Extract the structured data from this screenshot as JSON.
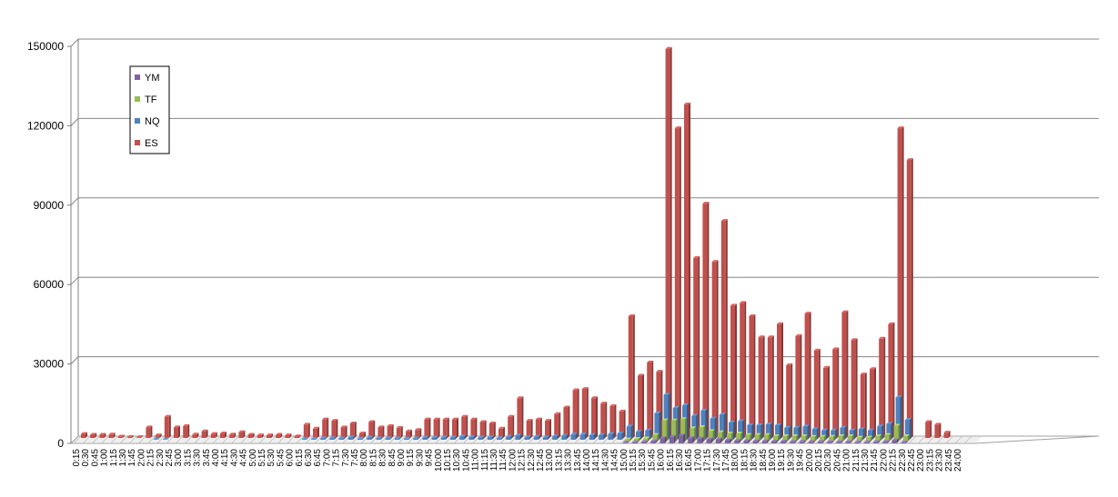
{
  "chart_data": {
    "type": "bar",
    "categories": [
      "0:15",
      "0:30",
      "0:45",
      "1:00",
      "1:15",
      "1:30",
      "1:45",
      "2:00",
      "2:15",
      "2:30",
      "2:45",
      "3:00",
      "3:15",
      "3:30",
      "3:45",
      "4:00",
      "4:15",
      "4:30",
      "4:45",
      "5:00",
      "5:15",
      "5:30",
      "5:45",
      "6:00",
      "6:15",
      "6:30",
      "6:45",
      "7:00",
      "7:15",
      "7:30",
      "7:45",
      "8:00",
      "8:15",
      "8:30",
      "8:45",
      "9:00",
      "9:15",
      "9:30",
      "9:45",
      "10:00",
      "10:15",
      "10:30",
      "10:45",
      "11:00",
      "11:15",
      "11:30",
      "11:45",
      "12:00",
      "12:15",
      "12:30",
      "12:45",
      "13:00",
      "13:15",
      "13:30",
      "13:45",
      "14:00",
      "14:15",
      "14:30",
      "14:45",
      "15:00",
      "15:15",
      "15:30",
      "15:45",
      "16:00",
      "16:15",
      "16:30",
      "16:45",
      "17:00",
      "17:15",
      "17:30",
      "17:45",
      "18:00",
      "18:15",
      "18:30",
      "18:45",
      "19:00",
      "19:15",
      "19:30",
      "19:45",
      "20:00",
      "20:15",
      "20:30",
      "20:45",
      "21:00",
      "21:15",
      "21:30",
      "21:45",
      "22:00",
      "22:15",
      "22:30",
      "22:45",
      "23:00",
      "23:15",
      "23:30",
      "23:45",
      "24:00"
    ],
    "series": [
      {
        "name": "YM",
        "color": "#7f64a2",
        "values": [
          0,
          0,
          0,
          0,
          0,
          0,
          0,
          0,
          0,
          0,
          0,
          0,
          0,
          0,
          0,
          0,
          0,
          0,
          0,
          0,
          0,
          0,
          0,
          0,
          0,
          0,
          0,
          0,
          0,
          0,
          0,
          0,
          0,
          0,
          0,
          0,
          0,
          0,
          0,
          0,
          0,
          0,
          0,
          0,
          0,
          0,
          0,
          0,
          0,
          0,
          0,
          0,
          0,
          0,
          0,
          0,
          0,
          0,
          0,
          300,
          400,
          500,
          800,
          2000,
          2500,
          3000,
          2000,
          1800,
          1500,
          1500,
          1200,
          1000,
          900,
          800,
          800,
          700,
          700,
          600,
          600,
          500,
          500,
          500,
          500,
          500,
          400,
          400,
          500,
          500,
          1200,
          400,
          0,
          0,
          0,
          0,
          0,
          0
        ]
      },
      {
        "name": "TF",
        "color": "#9bbb59",
        "values": [
          0,
          0,
          0,
          0,
          0,
          0,
          0,
          0,
          0,
          0,
          0,
          0,
          0,
          0,
          0,
          0,
          0,
          0,
          0,
          0,
          0,
          0,
          0,
          0,
          0,
          0,
          0,
          0,
          0,
          0,
          0,
          0,
          0,
          0,
          0,
          0,
          0,
          0,
          0,
          0,
          0,
          0,
          0,
          0,
          0,
          0,
          0,
          0,
          0,
          0,
          0,
          0,
          0,
          0,
          0,
          0,
          0,
          0,
          0,
          800,
          1000,
          1200,
          2500,
          8000,
          8000,
          8500,
          5000,
          5500,
          4000,
          3500,
          3000,
          3000,
          2500,
          2500,
          2500,
          2000,
          2000,
          2000,
          2000,
          1800,
          1800,
          1800,
          2000,
          2000,
          1500,
          1500,
          2000,
          2500,
          6000,
          2000,
          0,
          0,
          0,
          0,
          0,
          0
        ]
      },
      {
        "name": "NQ",
        "color": "#4f81bd",
        "values": [
          0,
          0,
          0,
          0,
          0,
          0,
          0,
          0,
          200,
          100,
          0,
          0,
          0,
          0,
          0,
          0,
          0,
          0,
          0,
          0,
          0,
          0,
          0,
          0,
          300,
          300,
          500,
          600,
          500,
          900,
          400,
          800,
          500,
          500,
          500,
          400,
          500,
          800,
          800,
          800,
          800,
          1200,
          1000,
          800,
          900,
          600,
          1100,
          1600,
          900,
          1100,
          900,
          1300,
          1500,
          2000,
          2000,
          1800,
          1800,
          2200,
          2400,
          5000,
          3000,
          3500,
          10000,
          17000,
          12000,
          13000,
          9000,
          11000,
          8000,
          9500,
          6500,
          7000,
          5500,
          5500,
          5800,
          5500,
          4500,
          4500,
          5000,
          4000,
          3500,
          3500,
          4500,
          3500,
          4000,
          3500,
          5000,
          6000,
          16000,
          7500,
          0,
          0,
          0,
          0,
          0,
          0
        ]
      },
      {
        "name": "ES",
        "color": "#c0504d",
        "values": [
          1500,
          1200,
          1200,
          1300,
          500,
          400,
          300,
          4000,
          1000,
          8000,
          4000,
          4500,
          1300,
          2500,
          1500,
          1700,
          1300,
          2200,
          1200,
          1000,
          1000,
          1200,
          1000,
          600,
          5000,
          3500,
          7000,
          6500,
          4000,
          5500,
          1700,
          6000,
          4000,
          4500,
          3800,
          2500,
          3000,
          7000,
          7000,
          7000,
          7000,
          8000,
          7000,
          6000,
          5500,
          3500,
          8000,
          15000,
          6500,
          7000,
          6500,
          9000,
          11500,
          18000,
          18500,
          15000,
          13000,
          12000,
          10000,
          46000,
          23500,
          28500,
          25000,
          147000,
          117000,
          126000,
          68000,
          88500,
          66500,
          82000,
          50000,
          51000,
          46000,
          38000,
          38000,
          43000,
          27500,
          38500,
          47000,
          33000,
          26500,
          33500,
          47500,
          37000,
          24000,
          26000,
          37500,
          43000,
          117000,
          105000,
          0,
          6000,
          5000,
          2000,
          0,
          0
        ]
      }
    ],
    "yticks": [
      "0",
      "30000",
      "60000",
      "90000",
      "120000",
      "150000"
    ],
    "ylim": [
      0,
      150000
    ],
    "grid": true,
    "legend_placement": "top-left"
  }
}
